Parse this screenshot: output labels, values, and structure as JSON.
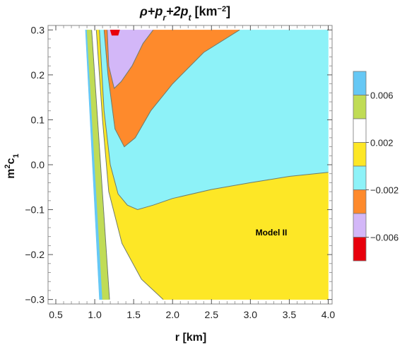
{
  "chart_data": {
    "type": "contour",
    "title_parts": [
      "ρ+p",
      "r",
      "+2p",
      "t",
      " [km",
      "−2",
      "]"
    ],
    "xlabel": "r [km]",
    "ylabel_parts": [
      "m",
      "2",
      "c",
      "1"
    ],
    "xlim": [
      0.4,
      4.05
    ],
    "ylim": [
      -0.31,
      0.31
    ],
    "xticks": [
      0.5,
      1.0,
      1.5,
      2.0,
      2.5,
      3.0,
      3.5,
      4.0
    ],
    "xtick_labels": [
      "0.5",
      "1.0",
      "1.5",
      "2.0",
      "2.5",
      "3.0",
      "3.5",
      "4.0"
    ],
    "yticks": [
      -0.3,
      -0.2,
      -0.1,
      0.0,
      0.1,
      0.2,
      0.3
    ],
    "ytick_labels": [
      "−0.3",
      "−0.2",
      "−0.1",
      "0.0",
      "0.1",
      "0.2",
      "0.3"
    ],
    "annotation": "Model II",
    "legend_placement": "right",
    "legend_bands": [
      {
        "color": "#66c8f5",
        "range": [
          0.006,
          0.008
        ]
      },
      {
        "color": "#c0dc55",
        "range": [
          0.004,
          0.006
        ]
      },
      {
        "color": "#ffffff",
        "range": [
          0.002,
          0.004
        ]
      },
      {
        "color": "#fde726",
        "range": [
          0.0,
          0.002
        ]
      },
      {
        "color": "#8df2f8",
        "range": [
          -0.002,
          0.0
        ]
      },
      {
        "color": "#fe8a2c",
        "range": [
          -0.004,
          -0.002
        ]
      },
      {
        "color": "#d3b7f8",
        "range": [
          -0.006,
          -0.004
        ]
      },
      {
        "color": "#e8000c",
        "range": [
          -0.008,
          -0.006
        ]
      }
    ],
    "legend_tick_labels": [
      "0.006",
      "0.002",
      "−0.002",
      "−0.006"
    ],
    "regions": [
      {
        "name": "blue",
        "color": "#66c8f5",
        "points": [
          [
            0.88,
            0.3
          ],
          [
            1.06,
            -0.3
          ],
          [
            1.1,
            -0.3
          ],
          [
            0.9,
            0.3
          ]
        ]
      },
      {
        "name": "green",
        "color": "#c0dc55",
        "points": [
          [
            0.9,
            0.3
          ],
          [
            1.1,
            -0.3
          ],
          [
            1.19,
            -0.3
          ],
          [
            0.96,
            0.3
          ]
        ]
      },
      {
        "name": "white",
        "color": "#ffffff",
        "points": [
          [
            0.96,
            0.3
          ],
          [
            1.19,
            -0.3
          ],
          [
            1.88,
            -0.3
          ],
          [
            1.6,
            -0.255
          ],
          [
            1.35,
            -0.175
          ],
          [
            1.18,
            -0.06
          ],
          [
            1.1,
            0.1
          ],
          [
            1.02,
            0.3
          ]
        ]
      },
      {
        "name": "yellow",
        "color": "#fde726",
        "points": [
          [
            1.02,
            0.3
          ],
          [
            1.1,
            0.1
          ],
          [
            1.18,
            -0.06
          ],
          [
            1.35,
            -0.175
          ],
          [
            1.6,
            -0.255
          ],
          [
            1.88,
            -0.3
          ],
          [
            4.0,
            -0.3
          ],
          [
            4.0,
            -0.017
          ],
          [
            3.5,
            -0.026
          ],
          [
            3.0,
            -0.04
          ],
          [
            2.5,
            -0.055
          ],
          [
            2.0,
            -0.075
          ],
          [
            1.75,
            -0.09
          ],
          [
            1.55,
            -0.1
          ],
          [
            1.42,
            -0.09
          ],
          [
            1.3,
            -0.065
          ],
          [
            1.2,
            0.0
          ],
          [
            1.12,
            0.12
          ],
          [
            1.06,
            0.3
          ]
        ]
      },
      {
        "name": "cyan",
        "color": "#8df2f8",
        "points": [
          [
            1.06,
            0.3
          ],
          [
            1.12,
            0.12
          ],
          [
            1.2,
            0.0
          ],
          [
            1.3,
            -0.065
          ],
          [
            1.42,
            -0.09
          ],
          [
            1.55,
            -0.1
          ],
          [
            1.75,
            -0.09
          ],
          [
            2.0,
            -0.075
          ],
          [
            2.5,
            -0.055
          ],
          [
            3.0,
            -0.04
          ],
          [
            3.5,
            -0.026
          ],
          [
            4.0,
            -0.017
          ],
          [
            4.0,
            0.3
          ],
          [
            2.86,
            0.3
          ],
          [
            2.4,
            0.25
          ],
          [
            2.0,
            0.18
          ],
          [
            1.72,
            0.12
          ],
          [
            1.52,
            0.06
          ],
          [
            1.38,
            0.04
          ],
          [
            1.26,
            0.08
          ],
          [
            1.17,
            0.2
          ],
          [
            1.12,
            0.3
          ]
        ]
      },
      {
        "name": "orange",
        "color": "#fe8a2c",
        "points": [
          [
            1.12,
            0.3
          ],
          [
            1.17,
            0.2
          ],
          [
            1.26,
            0.08
          ],
          [
            1.38,
            0.04
          ],
          [
            1.52,
            0.06
          ],
          [
            1.72,
            0.12
          ],
          [
            2.0,
            0.18
          ],
          [
            2.4,
            0.25
          ],
          [
            2.86,
            0.3
          ],
          [
            1.75,
            0.3
          ],
          [
            1.62,
            0.27
          ],
          [
            1.48,
            0.22
          ],
          [
            1.34,
            0.185
          ],
          [
            1.25,
            0.17
          ],
          [
            1.18,
            0.22
          ],
          [
            1.16,
            0.3
          ]
        ]
      },
      {
        "name": "lavender",
        "color": "#d3b7f8",
        "points": [
          [
            1.16,
            0.3
          ],
          [
            1.18,
            0.22
          ],
          [
            1.25,
            0.17
          ],
          [
            1.34,
            0.185
          ],
          [
            1.48,
            0.22
          ],
          [
            1.62,
            0.27
          ],
          [
            1.75,
            0.3
          ]
        ]
      },
      {
        "name": "red",
        "color": "#e8000c",
        "points": [
          [
            1.2,
            0.3
          ],
          [
            1.22,
            0.288
          ],
          [
            1.3,
            0.288
          ],
          [
            1.32,
            0.3
          ]
        ]
      }
    ],
    "contour_lines": [
      [
        [
          0.96,
          0.3
        ],
        [
          1.19,
          -0.3
        ]
      ],
      [
        [
          1.02,
          0.3
        ],
        [
          1.1,
          0.1
        ],
        [
          1.18,
          -0.06
        ],
        [
          1.35,
          -0.175
        ],
        [
          1.6,
          -0.255
        ],
        [
          1.88,
          -0.3
        ]
      ],
      [
        [
          1.06,
          0.3
        ],
        [
          1.12,
          0.12
        ],
        [
          1.2,
          0.0
        ],
        [
          1.3,
          -0.065
        ],
        [
          1.42,
          -0.09
        ],
        [
          1.55,
          -0.1
        ],
        [
          1.75,
          -0.09
        ],
        [
          2.0,
          -0.075
        ],
        [
          2.5,
          -0.055
        ],
        [
          3.0,
          -0.04
        ],
        [
          3.5,
          -0.026
        ],
        [
          4.0,
          -0.017
        ]
      ],
      [
        [
          1.12,
          0.3
        ],
        [
          1.17,
          0.2
        ],
        [
          1.26,
          0.08
        ],
        [
          1.38,
          0.04
        ],
        [
          1.52,
          0.06
        ],
        [
          1.72,
          0.12
        ],
        [
          2.0,
          0.18
        ],
        [
          2.4,
          0.25
        ],
        [
          2.86,
          0.3
        ]
      ],
      [
        [
          1.16,
          0.3
        ],
        [
          1.18,
          0.22
        ],
        [
          1.25,
          0.17
        ],
        [
          1.34,
          0.185
        ],
        [
          1.48,
          0.22
        ],
        [
          1.62,
          0.27
        ],
        [
          1.75,
          0.3
        ]
      ]
    ]
  }
}
